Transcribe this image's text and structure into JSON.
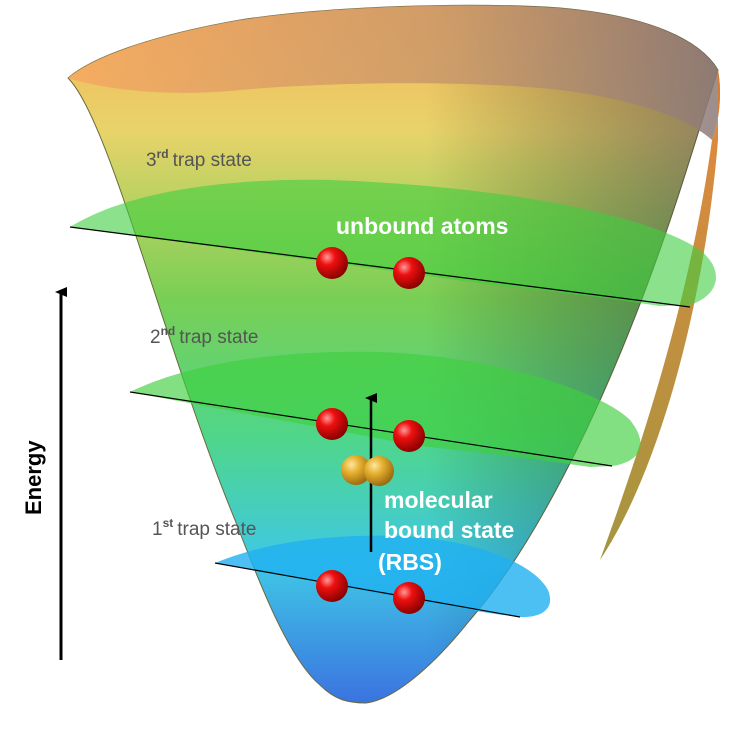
{
  "axis": {
    "energy_label": "Energy"
  },
  "trap_states": [
    {
      "ordinal": "3",
      "suffix": "rd",
      "text": "trap state"
    },
    {
      "ordinal": "2",
      "suffix": "nd",
      "text": "trap state"
    },
    {
      "ordinal": "1",
      "suffix": "st",
      "text": "trap state"
    }
  ],
  "annotations": {
    "unbound": "unbound atoms",
    "molecular_line1": "molecular",
    "molecular_line2": "bound state",
    "molecular_line3": "(RBS)"
  },
  "colors": {
    "atom": "#d40000",
    "molecule": "#e0a020",
    "plane": "#3fcf3f",
    "ground_plane": "#20b0f0",
    "arrow": "#000000"
  }
}
